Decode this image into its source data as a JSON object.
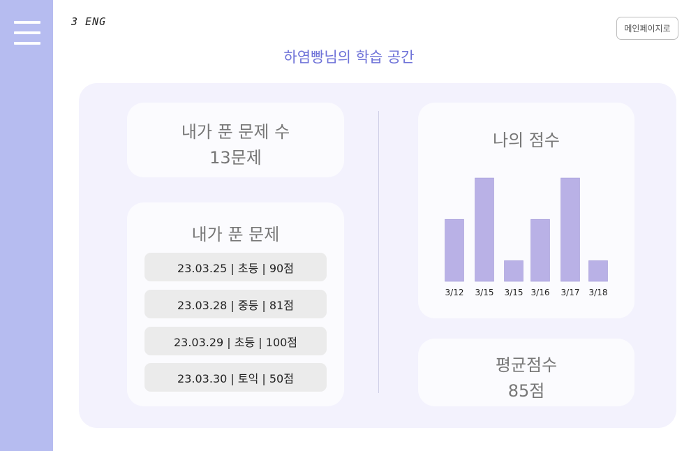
{
  "logo": "3 ENG",
  "main_button": "메인페이지로",
  "page_title": "하염빵님의 학습 공간",
  "solved_count": {
    "title": "내가 푼 문제 수",
    "value": "13문제"
  },
  "solved_list": {
    "title": "내가 푼 문제",
    "items": [
      "23.03.25 | 초등 | 90점",
      "23.03.28 | 중등 | 81점",
      "23.03.29 | 초등 | 100점",
      "23.03.30 | 토익 | 50점"
    ]
  },
  "score_chart": {
    "title": "나의 점수",
    "bar_color": "#b9b1e6",
    "chart_data": {
      "type": "bar",
      "categories": [
        "3/12",
        "3/15",
        "3/15",
        "3/16",
        "3/17",
        "3/18"
      ],
      "values": [
        3,
        5,
        1,
        3,
        5,
        1
      ]
    }
  },
  "average": {
    "title": "평균점수",
    "value": "85점"
  },
  "colors": {
    "sidebar": "#b6bcf0",
    "accent": "#6e72d8",
    "panel": "#f3f2fd"
  }
}
